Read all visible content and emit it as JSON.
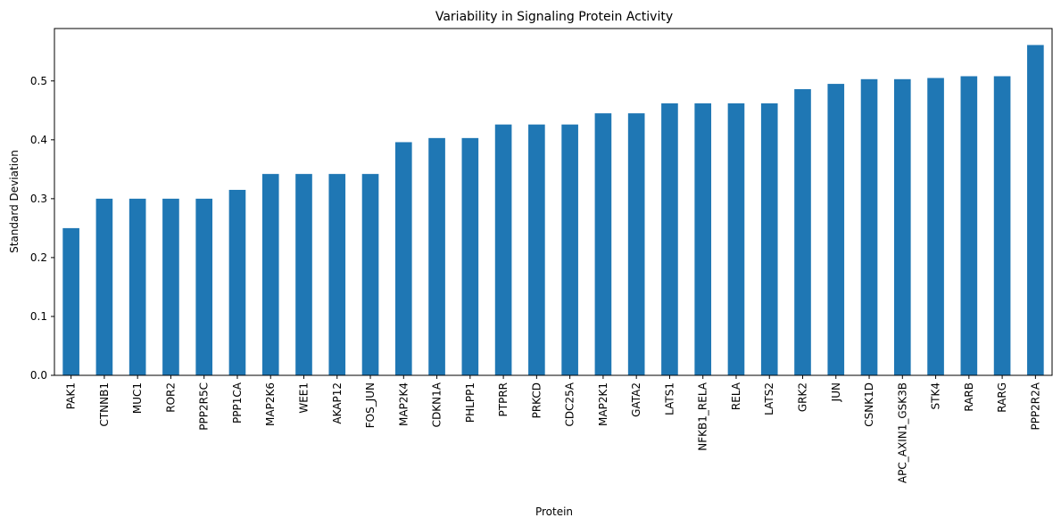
{
  "chart_data": {
    "type": "bar",
    "title": "Variability in Signaling Protein Activity",
    "xlabel": "Protein",
    "ylabel": "Standard Deviation",
    "ylim": [
      0,
      0.589
    ],
    "yticks": [
      "0.0",
      "0.1",
      "0.2",
      "0.3",
      "0.4",
      "0.5"
    ],
    "grid": false,
    "bar_color": "#1f77b4",
    "categories": [
      "PAK1",
      "CTNNB1",
      "MUC1",
      "ROR2",
      "PPP2R5C",
      "PPP1CA",
      "MAP2K6",
      "WEE1",
      "AKAP12",
      "FOS_JUN",
      "MAP2K4",
      "CDKN1A",
      "PHLPP1",
      "PTPRR",
      "PRKCD",
      "CDC25A",
      "MAP2K1",
      "GATA2",
      "LATS1",
      "NFKB1_RELA",
      "RELA",
      "LATS2",
      "GRK2",
      "JUN",
      "CSNK1D",
      "APC_AXIN1_GSK3B",
      "STK4",
      "RARB",
      "RARG",
      "PPP2R2A"
    ],
    "values": [
      0.25,
      0.3,
      0.3,
      0.3,
      0.3,
      0.315,
      0.342,
      0.342,
      0.342,
      0.342,
      0.396,
      0.403,
      0.403,
      0.426,
      0.426,
      0.426,
      0.445,
      0.445,
      0.462,
      0.462,
      0.462,
      0.462,
      0.486,
      0.495,
      0.503,
      0.503,
      0.505,
      0.508,
      0.508,
      0.561
    ]
  }
}
